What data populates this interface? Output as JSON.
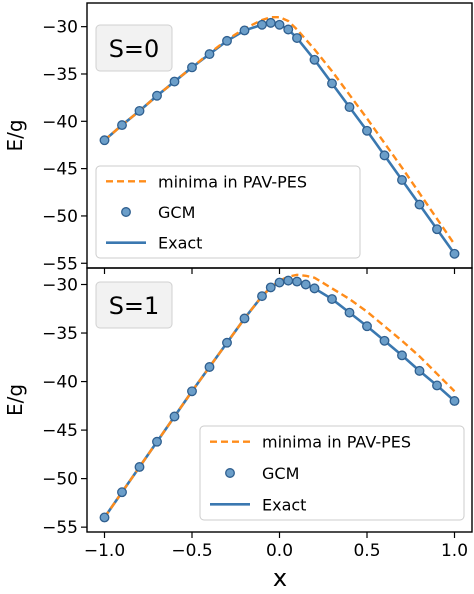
{
  "figure": {
    "xlabel": "x",
    "ylabel": "E/g"
  },
  "colors": {
    "exact": "#3a78b0",
    "gcm_fill": "#6b9ec9",
    "gcm_edge": "#2f5f8f",
    "pav": "#ff8c1a"
  },
  "chart_data": [
    {
      "type": "line",
      "panel_label": "S=0",
      "xlabel": "",
      "ylabel": "E/g",
      "xlim": [
        -1.1,
        1.1
      ],
      "ylim": [
        -55.5,
        -27.5
      ],
      "xticks": [
        -1.0,
        -0.5,
        0.0,
        0.5,
        1.0
      ],
      "yticks": [
        -55,
        -50,
        -45,
        -40,
        -35,
        -30
      ],
      "xtick_labels": [
        "−1.0",
        "−0.5",
        "0.0",
        "0.5",
        "1.0"
      ],
      "ytick_labels": [
        "−55",
        "−50",
        "−45",
        "−40",
        "−35",
        "−30"
      ],
      "legend": {
        "position": "lower-left",
        "entries": [
          "minima in PAV-PES",
          "GCM",
          "Exact"
        ]
      },
      "series": [
        {
          "name": "minima in PAV-PES",
          "style": "dashed",
          "x": [
            -1.0,
            -0.9,
            -0.8,
            -0.7,
            -0.6,
            -0.5,
            -0.4,
            -0.3,
            -0.2,
            -0.1,
            -0.05,
            0.0,
            0.05,
            0.1,
            0.2,
            0.3,
            0.4,
            0.5,
            0.6,
            0.7,
            0.8,
            0.9,
            1.0
          ],
          "y": [
            -42.0,
            -40.4,
            -38.9,
            -37.3,
            -35.8,
            -34.3,
            -32.8,
            -31.4,
            -30.2,
            -29.3,
            -29.0,
            -29.0,
            -29.4,
            -30.3,
            -32.4,
            -34.7,
            -37.2,
            -39.7,
            -42.3,
            -44.9,
            -47.6,
            -50.3,
            -53.0
          ]
        },
        {
          "name": "GCM",
          "style": "markers",
          "x": [
            -1.0,
            -0.9,
            -0.8,
            -0.7,
            -0.6,
            -0.5,
            -0.4,
            -0.3,
            -0.2,
            -0.1,
            -0.05,
            0.0,
            0.05,
            0.1,
            0.2,
            0.3,
            0.4,
            0.5,
            0.6,
            0.7,
            0.8,
            0.9,
            1.0
          ],
          "y": [
            -42.0,
            -40.4,
            -38.9,
            -37.3,
            -35.8,
            -34.3,
            -32.9,
            -31.5,
            -30.4,
            -29.8,
            -29.6,
            -29.8,
            -30.3,
            -31.2,
            -33.5,
            -36.0,
            -38.5,
            -41.0,
            -43.6,
            -46.2,
            -48.8,
            -51.4,
            -54.0
          ]
        },
        {
          "name": "Exact",
          "style": "solid",
          "x": [
            -1.0,
            -0.9,
            -0.8,
            -0.7,
            -0.6,
            -0.5,
            -0.4,
            -0.3,
            -0.2,
            -0.1,
            -0.05,
            0.0,
            0.05,
            0.1,
            0.2,
            0.3,
            0.4,
            0.5,
            0.6,
            0.7,
            0.8,
            0.9,
            1.0
          ],
          "y": [
            -42.0,
            -40.4,
            -38.9,
            -37.3,
            -35.8,
            -34.3,
            -32.9,
            -31.5,
            -30.4,
            -29.8,
            -29.6,
            -29.8,
            -30.3,
            -31.2,
            -33.5,
            -36.0,
            -38.5,
            -41.0,
            -43.6,
            -46.2,
            -48.8,
            -51.4,
            -54.0
          ]
        }
      ]
    },
    {
      "type": "line",
      "panel_label": "S=1",
      "xlabel": "x",
      "ylabel": "E/g",
      "xlim": [
        -1.1,
        1.1
      ],
      "ylim": [
        -55.5,
        -28.3
      ],
      "xticks": [
        -1.0,
        -0.5,
        0.0,
        0.5,
        1.0
      ],
      "yticks": [
        -55,
        -50,
        -45,
        -40,
        -35,
        -30
      ],
      "xtick_labels": [
        "−1.0",
        "−0.5",
        "0.0",
        "0.5",
        "1.0"
      ],
      "ytick_labels": [
        "−55",
        "−50",
        "−45",
        "−40",
        "−35",
        "−30"
      ],
      "legend": {
        "position": "lower-right",
        "entries": [
          "minima in PAV-PES",
          "GCM",
          "Exact"
        ]
      },
      "series": [
        {
          "name": "minima in PAV-PES",
          "style": "dashed",
          "x": [
            -1.0,
            -0.9,
            -0.8,
            -0.7,
            -0.6,
            -0.5,
            -0.4,
            -0.3,
            -0.2,
            -0.1,
            -0.05,
            0.0,
            0.05,
            0.1,
            0.15,
            0.2,
            0.3,
            0.4,
            0.5,
            0.6,
            0.7,
            0.8,
            0.9,
            1.0
          ],
          "y": [
            -54.0,
            -51.4,
            -48.8,
            -46.2,
            -43.6,
            -41.0,
            -38.5,
            -36.0,
            -33.5,
            -31.2,
            -30.3,
            -29.6,
            -29.2,
            -29.0,
            -29.1,
            -29.3,
            -30.4,
            -31.5,
            -32.8,
            -34.3,
            -35.8,
            -37.4,
            -39.2,
            -41.0
          ]
        },
        {
          "name": "GCM",
          "style": "markers",
          "x": [
            -1.0,
            -0.9,
            -0.8,
            -0.7,
            -0.6,
            -0.5,
            -0.4,
            -0.3,
            -0.2,
            -0.1,
            -0.05,
            0.0,
            0.05,
            0.1,
            0.15,
            0.2,
            0.3,
            0.4,
            0.5,
            0.6,
            0.7,
            0.8,
            0.9,
            1.0
          ],
          "y": [
            -54.0,
            -51.4,
            -48.8,
            -46.2,
            -43.6,
            -41.0,
            -38.5,
            -36.0,
            -33.5,
            -31.2,
            -30.3,
            -29.8,
            -29.6,
            -29.7,
            -30.0,
            -30.4,
            -31.5,
            -32.9,
            -34.3,
            -35.8,
            -37.3,
            -38.9,
            -40.4,
            -42.0
          ]
        },
        {
          "name": "Exact",
          "style": "solid",
          "x": [
            -1.0,
            -0.9,
            -0.8,
            -0.7,
            -0.6,
            -0.5,
            -0.4,
            -0.3,
            -0.2,
            -0.1,
            -0.05,
            0.0,
            0.05,
            0.1,
            0.15,
            0.2,
            0.3,
            0.4,
            0.5,
            0.6,
            0.7,
            0.8,
            0.9,
            1.0
          ],
          "y": [
            -54.0,
            -51.4,
            -48.8,
            -46.2,
            -43.6,
            -41.0,
            -38.5,
            -36.0,
            -33.5,
            -31.2,
            -30.3,
            -29.8,
            -29.6,
            -29.7,
            -30.0,
            -30.4,
            -31.5,
            -32.9,
            -34.3,
            -35.8,
            -37.3,
            -38.9,
            -40.4,
            -42.0
          ]
        }
      ]
    }
  ]
}
